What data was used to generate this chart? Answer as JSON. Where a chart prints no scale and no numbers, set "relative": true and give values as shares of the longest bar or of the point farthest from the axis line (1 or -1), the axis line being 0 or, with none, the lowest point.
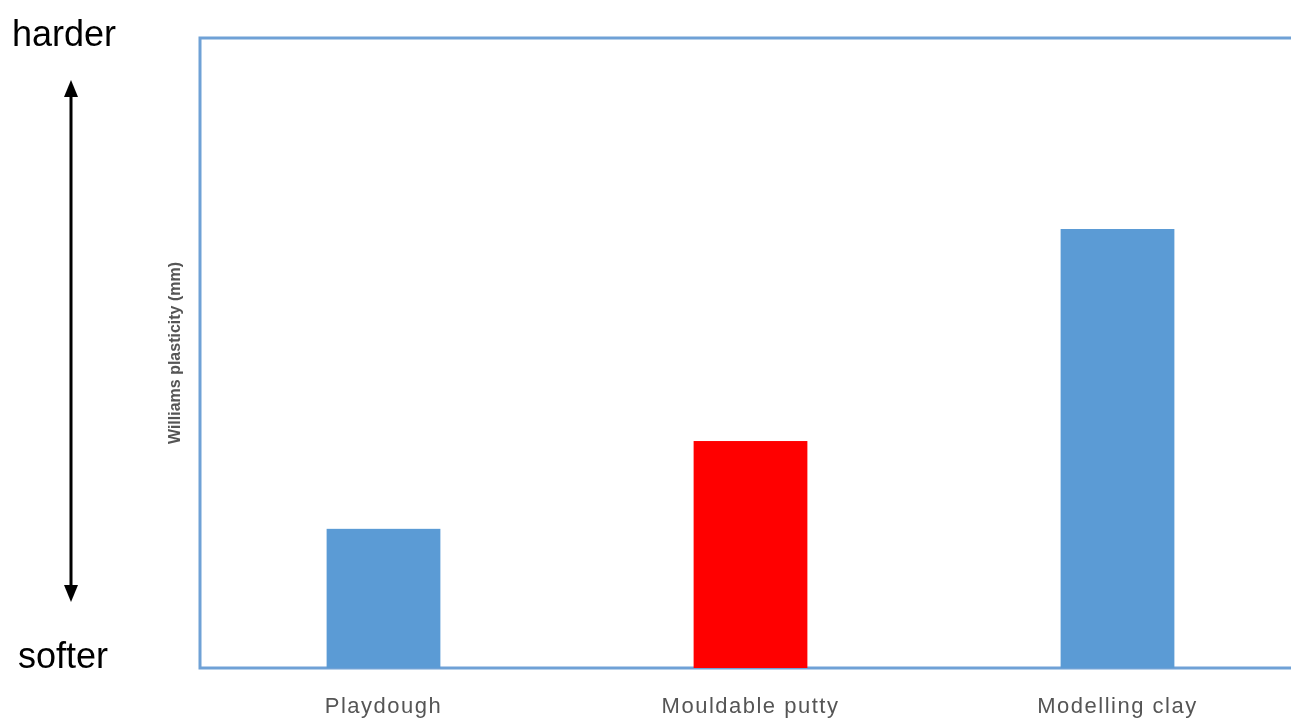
{
  "chart_data": {
    "type": "bar",
    "relative": true,
    "ylabel": "Williams plasticity (mm)",
    "categories": [
      "Playdough",
      "Mouldable putty",
      "Modelling clay"
    ],
    "values": [
      0.317,
      0.517,
      1
    ],
    "colors": [
      "#5b9bd5",
      "#ff0000",
      "#5b9bd5"
    ],
    "annotations": [
      "harder",
      "softer"
    ]
  }
}
